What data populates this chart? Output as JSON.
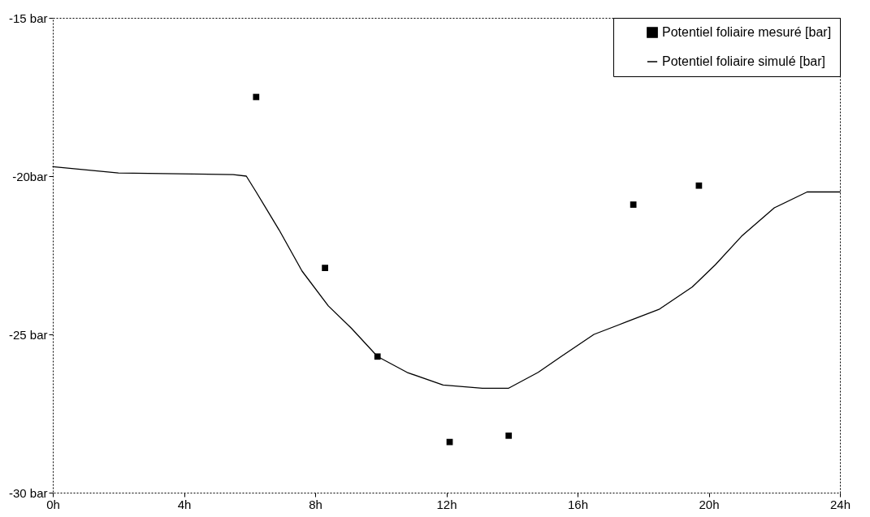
{
  "chart_data": {
    "type": "line",
    "xlim": [
      0,
      24
    ],
    "xticks": [
      {
        "value": 0,
        "label": "0h"
      },
      {
        "value": 4,
        "label": "4h"
      },
      {
        "value": 8,
        "label": "8h"
      },
      {
        "value": 12,
        "label": "12h"
      },
      {
        "value": 16,
        "label": "16h"
      },
      {
        "value": 20,
        "label": "20h"
      },
      {
        "value": 24,
        "label": "24h"
      }
    ],
    "ylim": [
      -30,
      -15
    ],
    "yticks": [
      {
        "value": -30,
        "label": "-30 bar"
      },
      {
        "value": -25,
        "label": "-25 bar"
      },
      {
        "value": -20,
        "label": "-20bar"
      },
      {
        "value": -15,
        "label": "-15 bar"
      }
    ],
    "grid": false,
    "legend": "top right",
    "series": [
      {
        "name": "Potentiel foliaire mesuré [bar]",
        "type": "scatter",
        "marker": "square",
        "color": "#000000",
        "x": [
          6.2,
          8.3,
          9.9,
          12.1,
          13.9,
          17.7,
          19.7
        ],
        "values": [
          -17.5,
          -22.9,
          -25.7,
          -28.4,
          -28.2,
          -20.9,
          -20.3
        ]
      },
      {
        "name": "Potentiel foliaire simulé [bar]",
        "color": "#000000",
        "x": [
          0,
          2,
          5.5,
          5.9,
          6.2,
          6.9,
          7.6,
          8.4,
          9.1,
          9.9,
          10.8,
          11.9,
          13.1,
          13.9,
          14.8,
          15.5,
          16.5,
          17.5,
          18.5,
          19.5,
          20.2,
          21,
          22,
          23,
          24
        ],
        "values": [
          -19.7,
          -19.9,
          -19.95,
          -20,
          -20.5,
          -21.7,
          -23,
          -24.1,
          -24.8,
          -25.7,
          -26.2,
          -26.6,
          -26.7,
          -26.7,
          -26.2,
          -25.7,
          -25,
          -24.6,
          -24.2,
          -23.5,
          -22.8,
          -21.9,
          -21,
          -20.5,
          -20.5
        ]
      }
    ]
  }
}
